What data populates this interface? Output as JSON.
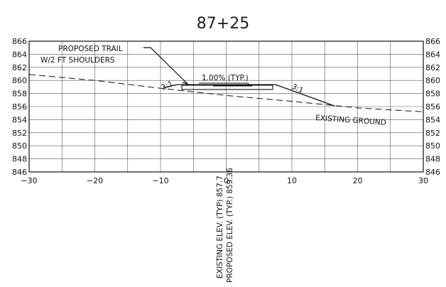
{
  "title": "87+25",
  "x_ticks": [
    "−30",
    "−20",
    "−10",
    "0",
    "10",
    "20",
    "30"
  ],
  "y_ticks": [
    "866",
    "864",
    "862",
    "860",
    "858",
    "856",
    "854",
    "852",
    "850",
    "848",
    "846"
  ],
  "annotations": {
    "trail_line1": "PROPOSED TRAIL",
    "trail_line2": "W/2 FT SHOULDERS",
    "cross_slope": "1.00% (TYP.)",
    "left_slope": "3:1",
    "right_slope": "3:1",
    "existing_ground": "EXISTING GROUND"
  },
  "elevation_labels": {
    "existing": "EXISTING ELEV. (TYP) 857.7",
    "proposed": "PROPOSED ELEV. (TYP.) 859.36"
  },
  "chart_data": {
    "type": "line",
    "title": "87+25",
    "xlim": [
      -30,
      30
    ],
    "ylim": [
      846,
      866
    ],
    "grid": true,
    "series": [
      {
        "name": "EXISTING GROUND",
        "style": "dashed",
        "x": [
          -30,
          -20,
          -10,
          0,
          10,
          20,
          30
        ],
        "y": [
          860.9,
          860.0,
          858.8,
          857.7,
          856.8,
          855.8,
          855.2
        ]
      },
      {
        "name": "PROPOSED TRAIL",
        "style": "solid",
        "x": [
          -9.5,
          -7.5,
          7.5,
          16.5
        ],
        "y": [
          858.9,
          859.36,
          859.36,
          856.1
        ]
      }
    ]
  }
}
